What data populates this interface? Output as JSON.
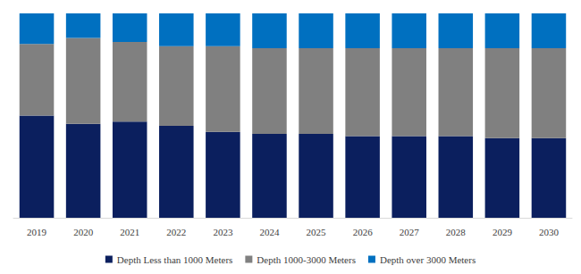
{
  "chart_data": {
    "type": "bar",
    "stacked": true,
    "categories": [
      "2019",
      "2020",
      "2021",
      "2022",
      "2023",
      "2024",
      "2025",
      "2026",
      "2027",
      "2028",
      "2029",
      "2030"
    ],
    "series": [
      {
        "name": "Depth Less than 1000 Meters",
        "color": "#0b1f5e",
        "values": [
          50,
          46,
          47,
          45,
          42,
          41,
          41,
          40,
          40,
          40,
          39,
          39
        ]
      },
      {
        "name": "Depth 1000-3000 Meters",
        "color": "#808080",
        "values": [
          35,
          42,
          39,
          39,
          42,
          42,
          42,
          43,
          43,
          43,
          44,
          44
        ]
      },
      {
        "name": "Depth over 3000 Meters",
        "color": "#0070c0",
        "values": [
          15,
          12,
          14,
          16,
          16,
          17,
          17,
          17,
          17,
          17,
          17,
          17
        ]
      }
    ],
    "ylim": [
      0,
      100
    ],
    "grid": false,
    "legend": "bottom",
    "tick_labels": "x"
  }
}
